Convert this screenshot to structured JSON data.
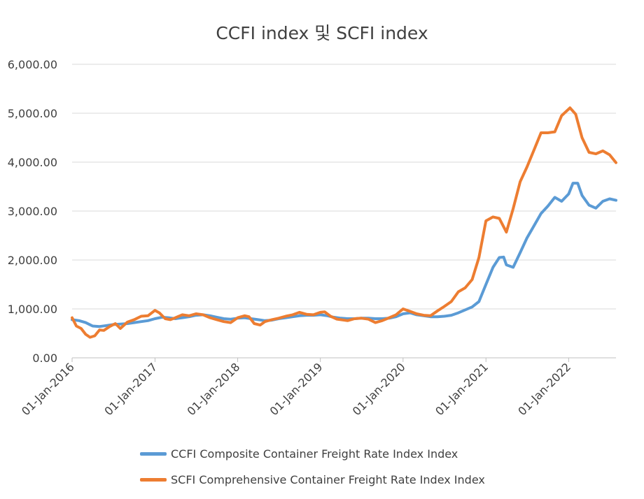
{
  "chart_data": {
    "type": "line",
    "title": "CCFI index 및 SCFI index",
    "xlabel": "",
    "ylabel": "",
    "ylim": [
      0,
      6000
    ],
    "xlim": [
      "2016-01-01",
      "2022-07-29"
    ],
    "grid": "horizontal",
    "legend_position": "bottom",
    "yticks": [
      "0.00",
      "1,000.00",
      "2,000.00",
      "3,000.00",
      "4,000.00",
      "5,000.00",
      "6,000.00"
    ],
    "xticks": [
      {
        "date": "2016-01-01",
        "label": "01-Jan-2016"
      },
      {
        "date": "2017-01-01",
        "label": "01-Jan-2017"
      },
      {
        "date": "2018-01-01",
        "label": "01-Jan-2018"
      },
      {
        "date": "2019-01-01",
        "label": "01-Jan-2019"
      },
      {
        "date": "2020-01-01",
        "label": "01-Jan-2020"
      },
      {
        "date": "2021-01-01",
        "label": "01-Jan-2021"
      },
      {
        "date": "2022-01-01",
        "label": "01-Jan-2022"
      }
    ],
    "series": [
      {
        "name": "CCFI Composite Container Freight Rate Index Index",
        "color": "#5B9BD5",
        "points": [
          [
            "2016-01-01",
            780
          ],
          [
            "2016-02-01",
            760
          ],
          [
            "2016-03-01",
            720
          ],
          [
            "2016-04-01",
            650
          ],
          [
            "2016-05-01",
            640
          ],
          [
            "2016-06-01",
            660
          ],
          [
            "2016-07-01",
            680
          ],
          [
            "2016-08-01",
            690
          ],
          [
            "2016-09-01",
            700
          ],
          [
            "2016-10-01",
            720
          ],
          [
            "2016-11-01",
            740
          ],
          [
            "2016-12-01",
            760
          ],
          [
            "2017-01-01",
            800
          ],
          [
            "2017-02-01",
            830
          ],
          [
            "2017-03-01",
            820
          ],
          [
            "2017-04-01",
            800
          ],
          [
            "2017-05-01",
            820
          ],
          [
            "2017-06-01",
            840
          ],
          [
            "2017-07-01",
            870
          ],
          [
            "2017-08-01",
            880
          ],
          [
            "2017-09-01",
            860
          ],
          [
            "2017-10-01",
            830
          ],
          [
            "2017-11-01",
            800
          ],
          [
            "2017-12-01",
            790
          ],
          [
            "2018-01-01",
            810
          ],
          [
            "2018-02-01",
            820
          ],
          [
            "2018-03-01",
            800
          ],
          [
            "2018-04-01",
            780
          ],
          [
            "2018-05-01",
            760
          ],
          [
            "2018-06-01",
            770
          ],
          [
            "2018-07-01",
            800
          ],
          [
            "2018-08-01",
            820
          ],
          [
            "2018-09-01",
            840
          ],
          [
            "2018-10-01",
            860
          ],
          [
            "2018-11-01",
            870
          ],
          [
            "2018-12-01",
            870
          ],
          [
            "2019-01-01",
            880
          ],
          [
            "2019-02-01",
            860
          ],
          [
            "2019-03-01",
            830
          ],
          [
            "2019-04-01",
            810
          ],
          [
            "2019-05-01",
            800
          ],
          [
            "2019-06-01",
            800
          ],
          [
            "2019-07-01",
            810
          ],
          [
            "2019-08-01",
            810
          ],
          [
            "2019-09-01",
            800
          ],
          [
            "2019-10-01",
            800
          ],
          [
            "2019-11-01",
            810
          ],
          [
            "2019-12-01",
            840
          ],
          [
            "2020-01-01",
            900
          ],
          [
            "2020-02-01",
            920
          ],
          [
            "2020-03-01",
            880
          ],
          [
            "2020-04-01",
            860
          ],
          [
            "2020-05-01",
            840
          ],
          [
            "2020-06-01",
            840
          ],
          [
            "2020-07-01",
            850
          ],
          [
            "2020-08-01",
            870
          ],
          [
            "2020-09-01",
            920
          ],
          [
            "2020-10-01",
            980
          ],
          [
            "2020-11-01",
            1040
          ],
          [
            "2020-12-01",
            1150
          ],
          [
            "2021-01-01",
            1500
          ],
          [
            "2021-02-01",
            1850
          ],
          [
            "2021-03-01",
            2050
          ],
          [
            "2021-03-20",
            2060
          ],
          [
            "2021-04-01",
            1900
          ],
          [
            "2021-05-01",
            1850
          ],
          [
            "2021-06-01",
            2150
          ],
          [
            "2021-07-01",
            2450
          ],
          [
            "2021-08-01",
            2700
          ],
          [
            "2021-09-01",
            2950
          ],
          [
            "2021-10-01",
            3100
          ],
          [
            "2021-11-01",
            3280
          ],
          [
            "2021-12-01",
            3200
          ],
          [
            "2022-01-01",
            3350
          ],
          [
            "2022-01-20",
            3570
          ],
          [
            "2022-02-10",
            3570
          ],
          [
            "2022-03-01",
            3320
          ],
          [
            "2022-04-01",
            3120
          ],
          [
            "2022-05-01",
            3060
          ],
          [
            "2022-06-01",
            3200
          ],
          [
            "2022-07-01",
            3250
          ],
          [
            "2022-07-29",
            3220
          ]
        ]
      },
      {
        "name": "SCFI Comprehensive Container Freight Rate Index Index",
        "color": "#ED7D31",
        "points": [
          [
            "2016-01-01",
            820
          ],
          [
            "2016-01-20",
            650
          ],
          [
            "2016-02-10",
            600
          ],
          [
            "2016-03-01",
            480
          ],
          [
            "2016-03-20",
            420
          ],
          [
            "2016-04-10",
            450
          ],
          [
            "2016-05-01",
            570
          ],
          [
            "2016-05-20",
            560
          ],
          [
            "2016-06-15",
            640
          ],
          [
            "2016-07-10",
            700
          ],
          [
            "2016-08-01",
            600
          ],
          [
            "2016-09-01",
            730
          ],
          [
            "2016-10-01",
            780
          ],
          [
            "2016-11-01",
            850
          ],
          [
            "2016-12-01",
            860
          ],
          [
            "2017-01-01",
            970
          ],
          [
            "2017-01-20",
            920
          ],
          [
            "2017-02-15",
            800
          ],
          [
            "2017-03-10",
            780
          ],
          [
            "2017-04-01",
            820
          ],
          [
            "2017-05-01",
            880
          ],
          [
            "2017-06-01",
            860
          ],
          [
            "2017-07-01",
            900
          ],
          [
            "2017-08-01",
            880
          ],
          [
            "2017-09-01",
            820
          ],
          [
            "2017-10-01",
            780
          ],
          [
            "2017-11-01",
            740
          ],
          [
            "2017-12-01",
            720
          ],
          [
            "2018-01-01",
            820
          ],
          [
            "2018-02-01",
            860
          ],
          [
            "2018-02-20",
            840
          ],
          [
            "2018-03-15",
            700
          ],
          [
            "2018-04-10",
            670
          ],
          [
            "2018-05-01",
            740
          ],
          [
            "2018-06-01",
            780
          ],
          [
            "2018-07-01",
            810
          ],
          [
            "2018-08-01",
            850
          ],
          [
            "2018-09-01",
            880
          ],
          [
            "2018-10-01",
            930
          ],
          [
            "2018-11-01",
            890
          ],
          [
            "2018-12-01",
            880
          ],
          [
            "2019-01-01",
            930
          ],
          [
            "2019-01-20",
            940
          ],
          [
            "2019-02-15",
            850
          ],
          [
            "2019-03-15",
            790
          ],
          [
            "2019-04-01",
            780
          ],
          [
            "2019-05-01",
            760
          ],
          [
            "2019-06-01",
            800
          ],
          [
            "2019-07-01",
            810
          ],
          [
            "2019-08-01",
            790
          ],
          [
            "2019-09-01",
            720
          ],
          [
            "2019-10-01",
            760
          ],
          [
            "2019-11-01",
            820
          ],
          [
            "2019-12-01",
            880
          ],
          [
            "2020-01-01",
            1000
          ],
          [
            "2020-02-01",
            950
          ],
          [
            "2020-03-01",
            900
          ],
          [
            "2020-04-01",
            870
          ],
          [
            "2020-05-01",
            860
          ],
          [
            "2020-06-01",
            960
          ],
          [
            "2020-07-01",
            1050
          ],
          [
            "2020-08-01",
            1150
          ],
          [
            "2020-09-01",
            1350
          ],
          [
            "2020-10-01",
            1430
          ],
          [
            "2020-11-01",
            1600
          ],
          [
            "2020-12-01",
            2050
          ],
          [
            "2021-01-01",
            2800
          ],
          [
            "2021-02-01",
            2880
          ],
          [
            "2021-03-01",
            2850
          ],
          [
            "2021-04-01",
            2570
          ],
          [
            "2021-05-01",
            3050
          ],
          [
            "2021-06-01",
            3600
          ],
          [
            "2021-07-01",
            3900
          ],
          [
            "2021-08-01",
            4250
          ],
          [
            "2021-09-01",
            4600
          ],
          [
            "2021-10-01",
            4600
          ],
          [
            "2021-11-01",
            4620
          ],
          [
            "2021-12-01",
            4950
          ],
          [
            "2022-01-07",
            5110
          ],
          [
            "2022-02-01",
            4980
          ],
          [
            "2022-03-01",
            4500
          ],
          [
            "2022-04-01",
            4200
          ],
          [
            "2022-05-01",
            4170
          ],
          [
            "2022-06-01",
            4230
          ],
          [
            "2022-07-01",
            4150
          ],
          [
            "2022-07-29",
            3990
          ]
        ]
      }
    ]
  }
}
